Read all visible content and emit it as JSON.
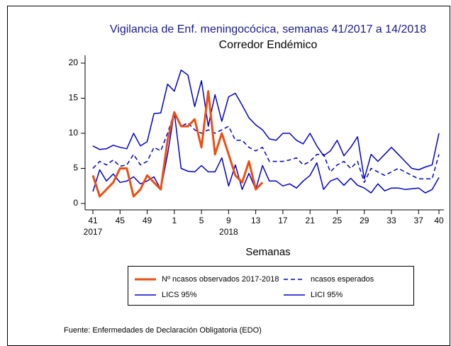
{
  "chart_data": {
    "type": "line",
    "title": "Vigilancia de Enf. meningocócica, semanas 41/2017 a 14/2018",
    "subtitle": "Corredor Endémico",
    "x_label": "Semanas",
    "note": "Fuente: Enfermedades de Declaración Obligatoria (EDO)",
    "categories": [
      "41",
      null,
      null,
      null,
      "45",
      null,
      null,
      null,
      "49",
      null,
      null,
      null,
      "1",
      null,
      null,
      null,
      "5",
      null,
      null,
      null,
      "9",
      null,
      null,
      null,
      "13",
      null,
      null,
      null,
      "17",
      null,
      null,
      null,
      "21",
      null,
      null,
      null,
      "25",
      null,
      null,
      null,
      "29",
      null,
      null,
      null,
      "33",
      null,
      null,
      null,
      "37",
      null,
      null,
      "40"
    ],
    "category_years": [
      "2017",
      null,
      null,
      null,
      null,
      null,
      null,
      null,
      null,
      null,
      null,
      null,
      null,
      null,
      null,
      null,
      null,
      null,
      null,
      null,
      "2018",
      null,
      null,
      null,
      null,
      null,
      null,
      null,
      null,
      null,
      null,
      null,
      null,
      null,
      null,
      null,
      null,
      null,
      null,
      null,
      null,
      null,
      null,
      null,
      null,
      null,
      null,
      null,
      null,
      null,
      null,
      null
    ],
    "ylim": [
      0,
      20
    ],
    "yticks": [
      0,
      5,
      10,
      15,
      20
    ],
    "series": [
      {
        "name": "Nº ncasos observados 2017-2018",
        "color": "#ee4e12",
        "width": 3,
        "dash": false,
        "values": [
          4,
          1,
          2,
          3,
          5,
          5,
          1,
          2,
          4,
          3,
          2,
          9,
          13,
          11,
          11,
          12,
          8,
          16,
          7,
          10,
          7,
          4,
          3,
          6,
          2,
          3,
          null,
          null,
          null,
          null,
          null,
          null,
          null,
          null,
          null,
          null,
          null,
          null,
          null,
          null,
          null,
          null,
          null,
          null,
          null,
          null,
          null,
          null,
          null,
          null,
          null,
          null
        ]
      },
      {
        "name": "ncasos esperados",
        "color": "#0000cc",
        "width": 1.5,
        "dash": true,
        "values": [
          5,
          6,
          5.5,
          6.2,
          5.3,
          5.5,
          7,
          5.5,
          6,
          8,
          7.5,
          10,
          13,
          11,
          11.5,
          10.5,
          10,
          10.5,
          10,
          10.5,
          11,
          9,
          9,
          8,
          7.5,
          8,
          6,
          6,
          6,
          6.2,
          6.5,
          5.5,
          6,
          7,
          7,
          4.5,
          5.5,
          6,
          5,
          6,
          3,
          5,
          4.5,
          4,
          4.5,
          5,
          4.5,
          4,
          3.5,
          3.5,
          3.5,
          7
        ]
      },
      {
        "name": "LICS 95%",
        "color": "#0000cc",
        "width": 1.5,
        "dash": false,
        "values": [
          8.2,
          7.7,
          7.8,
          8.3,
          8,
          7.8,
          10,
          8.2,
          8.8,
          12.8,
          12.9,
          17,
          16,
          19,
          18.3,
          13.8,
          17.5,
          11,
          15.5,
          11.7,
          15.2,
          15.7,
          14,
          12.2,
          11.2,
          10.5,
          9.2,
          9,
          10,
          10,
          9,
          8.5,
          10,
          8.2,
          6.8,
          7.5,
          9,
          6.8,
          8,
          9.5,
          3.5,
          7,
          6,
          7,
          8,
          7,
          6,
          5,
          4.8,
          5.2,
          5.5,
          10
        ]
      },
      {
        "name": "LICI 95%",
        "color": "#0000cc",
        "width": 1.5,
        "dash": false,
        "values": [
          1.7,
          4.8,
          3.2,
          4.2,
          3,
          3.2,
          3.8,
          2.8,
          3.2,
          3.8,
          2,
          7,
          13,
          5,
          4.6,
          4.5,
          5.4,
          4.5,
          4.5,
          6.5,
          2.5,
          5.5,
          2,
          4.3,
          2,
          5.4,
          3.2,
          3.2,
          2.5,
          2.8,
          2.2,
          3.2,
          4,
          5.8,
          2,
          3.2,
          3.6,
          2.6,
          3.6,
          2.6,
          2.2,
          1.5,
          2.8,
          1.8,
          2.2,
          2.2,
          2,
          2.1,
          2.2,
          1.5,
          2,
          3.7
        ]
      }
    ]
  }
}
